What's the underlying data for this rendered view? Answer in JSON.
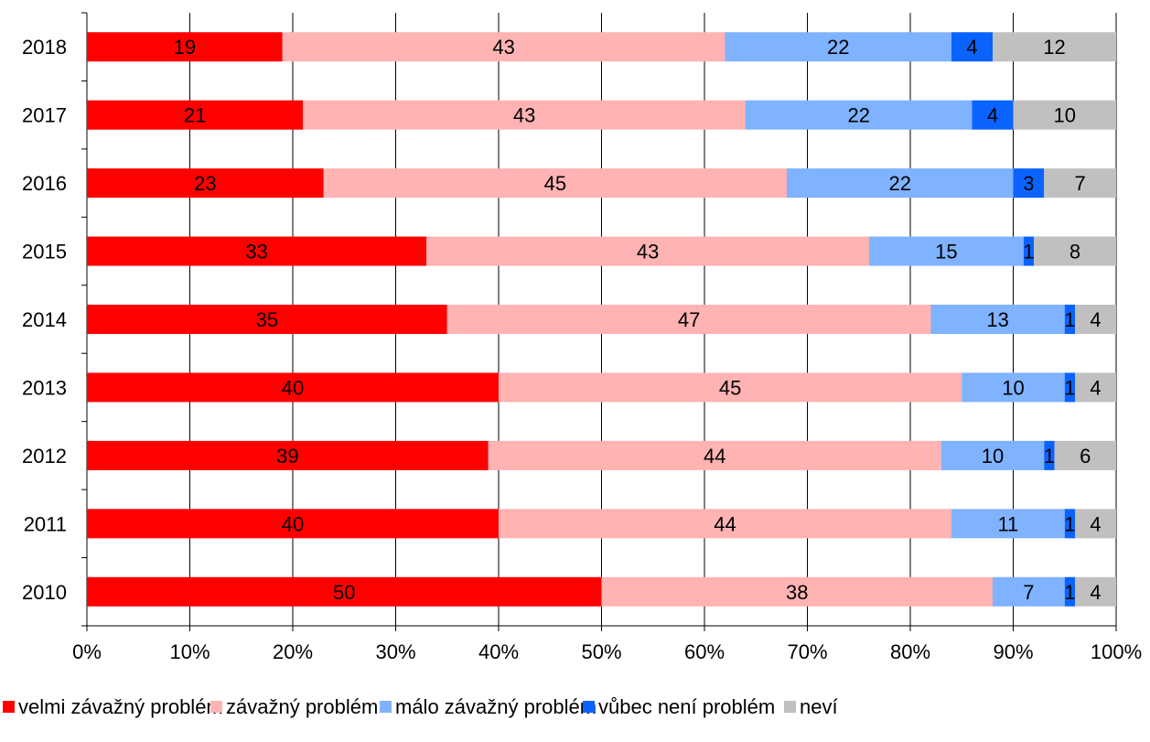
{
  "chart_data": {
    "type": "bar",
    "orientation": "horizontal",
    "stacked": "percent",
    "categories": [
      "2018",
      "2017",
      "2016",
      "2015",
      "2014",
      "2013",
      "2012",
      "2011",
      "2010"
    ],
    "series": [
      {
        "name": "velmi závažný problém",
        "color": "#ff0000",
        "values": [
          19,
          21,
          23,
          33,
          35,
          40,
          39,
          40,
          50
        ]
      },
      {
        "name": "závažný problém",
        "color": "#ffb3b3",
        "values": [
          43,
          43,
          45,
          43,
          47,
          45,
          44,
          44,
          38
        ]
      },
      {
        "name": "málo závažný problém",
        "color": "#7fb2ff",
        "values": [
          22,
          22,
          22,
          15,
          13,
          10,
          10,
          11,
          7
        ]
      },
      {
        "name": "vůbec není problém",
        "color": "#0b63ff",
        "values": [
          4,
          4,
          3,
          1,
          1,
          1,
          1,
          1,
          1
        ]
      },
      {
        "name": "neví",
        "color": "#c0c0c0",
        "values": [
          12,
          10,
          7,
          8,
          4,
          4,
          6,
          4,
          4
        ]
      }
    ],
    "x_ticks": [
      "0%",
      "10%",
      "20%",
      "30%",
      "40%",
      "50%",
      "60%",
      "70%",
      "80%",
      "90%",
      "100%"
    ],
    "xlim": [
      0,
      100
    ],
    "grid": "vertical",
    "legend": "bottom"
  }
}
